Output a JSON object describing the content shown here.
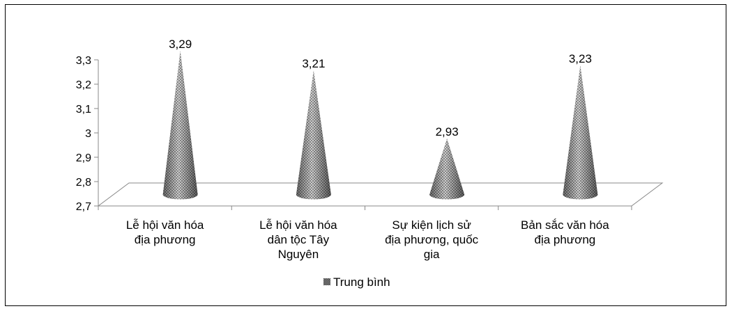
{
  "chart_data": {
    "type": "bar",
    "bar_shape": "cone",
    "categories": [
      [
        "Lễ hội văn hóa",
        "địa phương"
      ],
      [
        "Lễ hội văn hóa",
        "dân tộc Tây",
        "Nguyên"
      ],
      [
        "Sự kiện lịch sử",
        "địa phương, quốc",
        "gia"
      ],
      [
        "Bản sắc văn hóa",
        "địa phương"
      ]
    ],
    "series": [
      {
        "name": "Trung bình",
        "values": [
          3.29,
          3.21,
          2.93,
          3.23
        ],
        "labels": [
          "3,29",
          "3,21",
          "2,93",
          "3,23"
        ]
      }
    ],
    "ylim": [
      2.7,
      3.3
    ],
    "yticks": [
      2.7,
      2.8,
      2.9,
      3.0,
      3.1,
      3.2,
      3.3
    ],
    "ytick_labels": [
      "2,7",
      "2,8",
      "2,9",
      "3",
      "3,1",
      "3,2",
      "3,3"
    ],
    "legend": "bottom",
    "grid": false,
    "colors": {
      "cone_dark": "#555555",
      "cone_light": "#c8c8c8",
      "axis": "#888888"
    }
  }
}
